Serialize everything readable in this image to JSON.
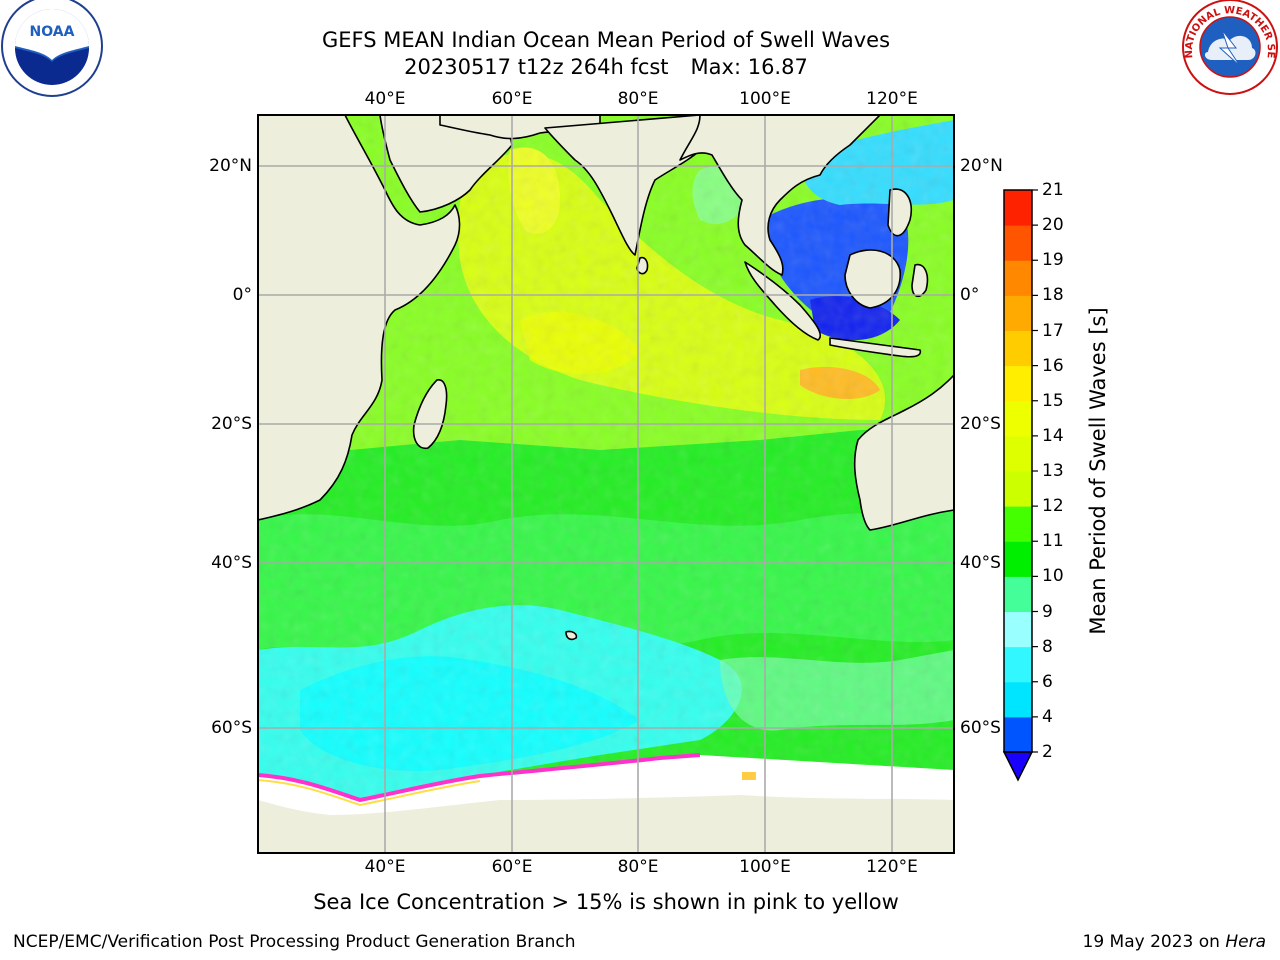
{
  "title": {
    "line1": "GEFS MEAN Indian Ocean Mean Period of Swell Waves",
    "line2a": "20230517 t12z 264h fcst",
    "line2b": "Max: 16.87"
  },
  "axes": {
    "lon_labels": [
      "40°E",
      "60°E",
      "80°E",
      "100°E",
      "120°E"
    ],
    "lat_labels": [
      "20°N",
      "0°",
      "20°S",
      "40°S",
      "60°S"
    ]
  },
  "colorbar": {
    "label": "Mean Period of Swell Waves [s]",
    "ticks": [
      "2",
      "4",
      "6",
      "8",
      "9",
      "10",
      "11",
      "12",
      "13",
      "14",
      "15",
      "16",
      "17",
      "18",
      "19",
      "20",
      "21"
    ],
    "colors": [
      "#0055ff",
      "#00e5ff",
      "#33f7ff",
      "#99ffff",
      "#44ff99",
      "#00ee00",
      "#44ff00",
      "#ccff00",
      "#ddff00",
      "#eeff00",
      "#ffee00",
      "#ffcc00",
      "#ffaa00",
      "#ff8800",
      "#ff5500",
      "#ff2200"
    ],
    "under_color": "#1a00ff"
  },
  "note": "Sea Ice Concentration > 15% is shown in pink to yellow",
  "footer": {
    "left": "NCEP/EMC/Verification Post Processing Product Generation Branch",
    "right_prefix": "19 May 2023 on ",
    "right_host": "Hera"
  },
  "logos": {
    "noaa_text": "NOAA",
    "nws_text": "NATIONAL WEATHER SERVICE"
  }
}
